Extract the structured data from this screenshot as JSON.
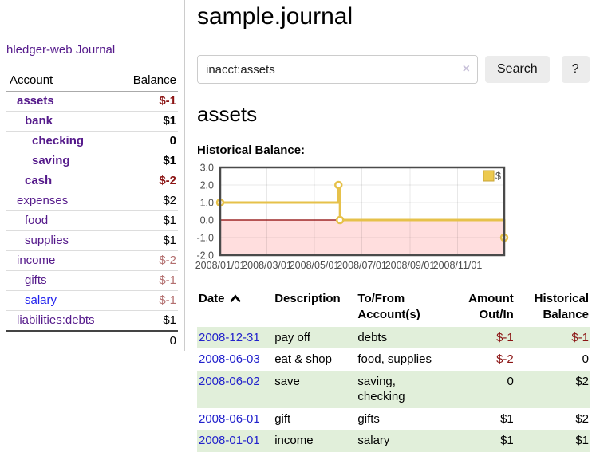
{
  "sidebar": {
    "brand": "hledger-web",
    "journal_link": "Journal",
    "accounts": {
      "headers": [
        "Account",
        "Balance"
      ],
      "rows": [
        {
          "name": "assets",
          "balance": "$-1",
          "depth": 1,
          "bold": true,
          "neg": "strong"
        },
        {
          "name": "bank",
          "balance": "$1",
          "depth": 2,
          "bold": true,
          "neg": "none"
        },
        {
          "name": "checking",
          "balance": "0",
          "depth": 3,
          "bold": true,
          "neg": "none"
        },
        {
          "name": "saving",
          "balance": "$1",
          "depth": 3,
          "bold": true,
          "neg": "none"
        },
        {
          "name": "cash",
          "balance": "$-2",
          "depth": 2,
          "bold": true,
          "neg": "strong"
        },
        {
          "name": "expenses",
          "balance": "$2",
          "depth": 1,
          "bold": false,
          "neg": "none"
        },
        {
          "name": "food",
          "balance": "$1",
          "depth": 2,
          "bold": false,
          "neg": "none"
        },
        {
          "name": "supplies",
          "balance": "$1",
          "depth": 2,
          "bold": false,
          "neg": "none"
        },
        {
          "name": "income",
          "balance": "$-2",
          "depth": 1,
          "bold": false,
          "neg": "muted"
        },
        {
          "name": "gifts",
          "balance": "$-1",
          "depth": 2,
          "bold": false,
          "neg": "muted"
        },
        {
          "name": "salary",
          "balance": "$-1",
          "depth": 2,
          "bold": false,
          "neg": "muted",
          "link_style": "unvisited"
        },
        {
          "name": "liabilities:debts",
          "balance": "$1",
          "depth": 1,
          "bold": false,
          "neg": "none"
        }
      ],
      "total": "0"
    }
  },
  "header": {
    "title": "sample.journal"
  },
  "search": {
    "query": "inacct:assets",
    "clear_icon": "×",
    "button_label": "Search",
    "help_label": "?"
  },
  "main": {
    "account_heading": "assets",
    "chart_label": "Historical Balance:"
  },
  "chart_data": {
    "type": "line",
    "step": true,
    "title": "Historical Balance of assets",
    "xlim": [
      0,
      365
    ],
    "ylim": [
      -2,
      3
    ],
    "x_ticks": [
      {
        "pos": 0,
        "label": "2008/01/01"
      },
      {
        "pos": 60,
        "label": "2008/03/01"
      },
      {
        "pos": 121,
        "label": "2008/05/01"
      },
      {
        "pos": 182,
        "label": "2008/07/01"
      },
      {
        "pos": 244,
        "label": "2008/09/01"
      },
      {
        "pos": 305,
        "label": "2008/11/01"
      }
    ],
    "y_ticks": [
      {
        "v": 3,
        "label": "3.0"
      },
      {
        "v": 2,
        "label": "2.0"
      },
      {
        "v": 1,
        "label": "1.0"
      },
      {
        "v": 0,
        "label": "0.0"
      },
      {
        "v": -1,
        "label": "-1.0"
      },
      {
        "v": -2,
        "label": "-2.0"
      }
    ],
    "series": [
      {
        "name": "$",
        "color": "#e6c14a",
        "points": [
          [
            0,
            1
          ],
          [
            152,
            2
          ],
          [
            153,
            2
          ],
          [
            154,
            0
          ],
          [
            365,
            -1
          ]
        ]
      }
    ],
    "marker_points": [
      [
        0,
        1
      ],
      [
        152,
        2
      ],
      [
        154,
        0
      ],
      [
        365,
        -1
      ]
    ],
    "legend": {
      "label": "$",
      "swatch_color": "#ecc94f",
      "swatch_border": "#c7a437",
      "position": "top-right"
    },
    "grid": true,
    "negative_region_color": "#ffdede",
    "zero_line_color": "#8b0000",
    "border_color": "#4a4a4a"
  },
  "transactions": {
    "headers": [
      {
        "key": "date",
        "lines": [
          "Date"
        ],
        "align": "left",
        "sort": "asc"
      },
      {
        "key": "desc",
        "lines": [
          "Description"
        ],
        "align": "left"
      },
      {
        "key": "accts",
        "lines": [
          "To/From",
          "Account(s)"
        ],
        "align": "left"
      },
      {
        "key": "amount",
        "lines": [
          "Amount",
          "Out/In"
        ],
        "align": "right"
      },
      {
        "key": "balance",
        "lines": [
          "Historical",
          "Balance"
        ],
        "align": "right"
      }
    ],
    "rows": [
      {
        "date": "2008-12-31",
        "description": "pay off",
        "accounts": "debts",
        "amount": "$-1",
        "balance": "$-1"
      },
      {
        "date": "2008-06-03",
        "description": "eat & shop",
        "accounts": "food, supplies",
        "amount": "$-2",
        "balance": "0"
      },
      {
        "date": "2008-06-02",
        "description": "save",
        "accounts": "saving, checking",
        "amount": "0",
        "balance": "$2"
      },
      {
        "date": "2008-06-01",
        "description": "gift",
        "accounts": "gifts",
        "amount": "$1",
        "balance": "$2"
      },
      {
        "date": "2008-01-01",
        "description": "income",
        "accounts": "salary",
        "amount": "$1",
        "balance": "$1"
      }
    ]
  },
  "colors": {
    "link_visited": "#551a8b",
    "link_unvisited": "#2222ee",
    "date_link": "#2222cc",
    "negative_strong": "#8b1414",
    "negative_muted": "#b36f6f",
    "row_stripe": "#e1efda",
    "chart_line": "#e6c14a"
  }
}
